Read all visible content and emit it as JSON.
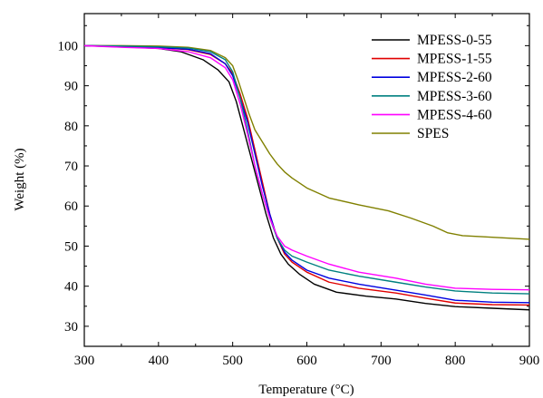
{
  "chart_data": {
    "type": "line",
    "title": "",
    "xlabel": "Temperature (°C)",
    "ylabel": "Weight (%)",
    "xlim": [
      300,
      900
    ],
    "ylim": [
      25,
      108
    ],
    "xticks": [
      300,
      400,
      500,
      600,
      700,
      800,
      900
    ],
    "yticks": [
      30,
      40,
      50,
      60,
      70,
      80,
      90,
      100
    ],
    "legend_position": "top-right",
    "grid": false,
    "series": [
      {
        "name": "MPESS-0-55",
        "color": "#000000",
        "points": [
          [
            300,
            100
          ],
          [
            350,
            99.7
          ],
          [
            400,
            99.3
          ],
          [
            430,
            98.5
          ],
          [
            460,
            96.5
          ],
          [
            480,
            94
          ],
          [
            495,
            91
          ],
          [
            505,
            86
          ],
          [
            515,
            79
          ],
          [
            525,
            72
          ],
          [
            535,
            65
          ],
          [
            545,
            58
          ],
          [
            555,
            52
          ],
          [
            565,
            48
          ],
          [
            575,
            45.5
          ],
          [
            590,
            43
          ],
          [
            610,
            40.5
          ],
          [
            640,
            38.5
          ],
          [
            680,
            37.5
          ],
          [
            720,
            36.8
          ],
          [
            760,
            35.7
          ],
          [
            800,
            34.9
          ],
          [
            850,
            34.5
          ],
          [
            900,
            34.1
          ]
        ]
      },
      {
        "name": "MPESS-1-55",
        "color": "#e00000",
        "points": [
          [
            300,
            100
          ],
          [
            350,
            99.8
          ],
          [
            400,
            99.5
          ],
          [
            440,
            99
          ],
          [
            470,
            97.8
          ],
          [
            490,
            95.5
          ],
          [
            500,
            93
          ],
          [
            510,
            88
          ],
          [
            520,
            82
          ],
          [
            530,
            74
          ],
          [
            540,
            66
          ],
          [
            550,
            58
          ],
          [
            560,
            52
          ],
          [
            570,
            48
          ],
          [
            580,
            46
          ],
          [
            600,
            43.5
          ],
          [
            630,
            41
          ],
          [
            670,
            39.5
          ],
          [
            720,
            38.3
          ],
          [
            760,
            37
          ],
          [
            800,
            35.8
          ],
          [
            850,
            35.4
          ],
          [
            900,
            35.3
          ]
        ]
      },
      {
        "name": "MPESS-2-60",
        "color": "#0000e0",
        "points": [
          [
            300,
            100
          ],
          [
            350,
            99.8
          ],
          [
            400,
            99.5
          ],
          [
            440,
            99.1
          ],
          [
            470,
            98
          ],
          [
            490,
            95.5
          ],
          [
            500,
            92.5
          ],
          [
            510,
            87
          ],
          [
            520,
            81
          ],
          [
            530,
            73
          ],
          [
            540,
            65
          ],
          [
            550,
            58
          ],
          [
            560,
            52
          ],
          [
            570,
            48.5
          ],
          [
            580,
            46.5
          ],
          [
            600,
            44
          ],
          [
            630,
            42
          ],
          [
            670,
            40.5
          ],
          [
            720,
            39
          ],
          [
            760,
            37.8
          ],
          [
            800,
            36.5
          ],
          [
            850,
            36
          ],
          [
            900,
            35.9
          ]
        ]
      },
      {
        "name": "MPESS-3-60",
        "color": "#008080",
        "points": [
          [
            300,
            100
          ],
          [
            350,
            99.9
          ],
          [
            400,
            99.7
          ],
          [
            440,
            99.4
          ],
          [
            470,
            98.5
          ],
          [
            490,
            96.5
          ],
          [
            500,
            93.5
          ],
          [
            510,
            87
          ],
          [
            520,
            79
          ],
          [
            530,
            70
          ],
          [
            540,
            63
          ],
          [
            550,
            57
          ],
          [
            560,
            52
          ],
          [
            570,
            49
          ],
          [
            580,
            47.5
          ],
          [
            600,
            46
          ],
          [
            630,
            44
          ],
          [
            670,
            42.5
          ],
          [
            720,
            41
          ],
          [
            760,
            39.8
          ],
          [
            800,
            38.8
          ],
          [
            850,
            38.3
          ],
          [
            900,
            38.1
          ]
        ]
      },
      {
        "name": "MPESS-4-60",
        "color": "#ff00ff",
        "points": [
          [
            300,
            100
          ],
          [
            350,
            99.6
          ],
          [
            400,
            99.3
          ],
          [
            440,
            98.5
          ],
          [
            470,
            97
          ],
          [
            490,
            94.5
          ],
          [
            500,
            91.5
          ],
          [
            510,
            85.5
          ],
          [
            520,
            78
          ],
          [
            530,
            70
          ],
          [
            540,
            63
          ],
          [
            550,
            57
          ],
          [
            560,
            52.5
          ],
          [
            570,
            50
          ],
          [
            580,
            49
          ],
          [
            600,
            47.5
          ],
          [
            630,
            45.5
          ],
          [
            670,
            43.5
          ],
          [
            720,
            42
          ],
          [
            760,
            40.5
          ],
          [
            800,
            39.5
          ],
          [
            850,
            39.2
          ],
          [
            900,
            39.1
          ]
        ]
      },
      {
        "name": "SPES",
        "color": "#808000",
        "points": [
          [
            300,
            100
          ],
          [
            350,
            100
          ],
          [
            400,
            99.9
          ],
          [
            440,
            99.6
          ],
          [
            470,
            98.8
          ],
          [
            490,
            97
          ],
          [
            500,
            95
          ],
          [
            508,
            91
          ],
          [
            515,
            87
          ],
          [
            522,
            83
          ],
          [
            530,
            79
          ],
          [
            540,
            76
          ],
          [
            550,
            73
          ],
          [
            560,
            70.5
          ],
          [
            570,
            68.5
          ],
          [
            580,
            67
          ],
          [
            600,
            64.5
          ],
          [
            630,
            62
          ],
          [
            670,
            60.3
          ],
          [
            710,
            58.8
          ],
          [
            740,
            57
          ],
          [
            770,
            55
          ],
          [
            790,
            53.3
          ],
          [
            810,
            52.6
          ],
          [
            850,
            52.2
          ],
          [
            900,
            51.7
          ]
        ]
      }
    ]
  }
}
